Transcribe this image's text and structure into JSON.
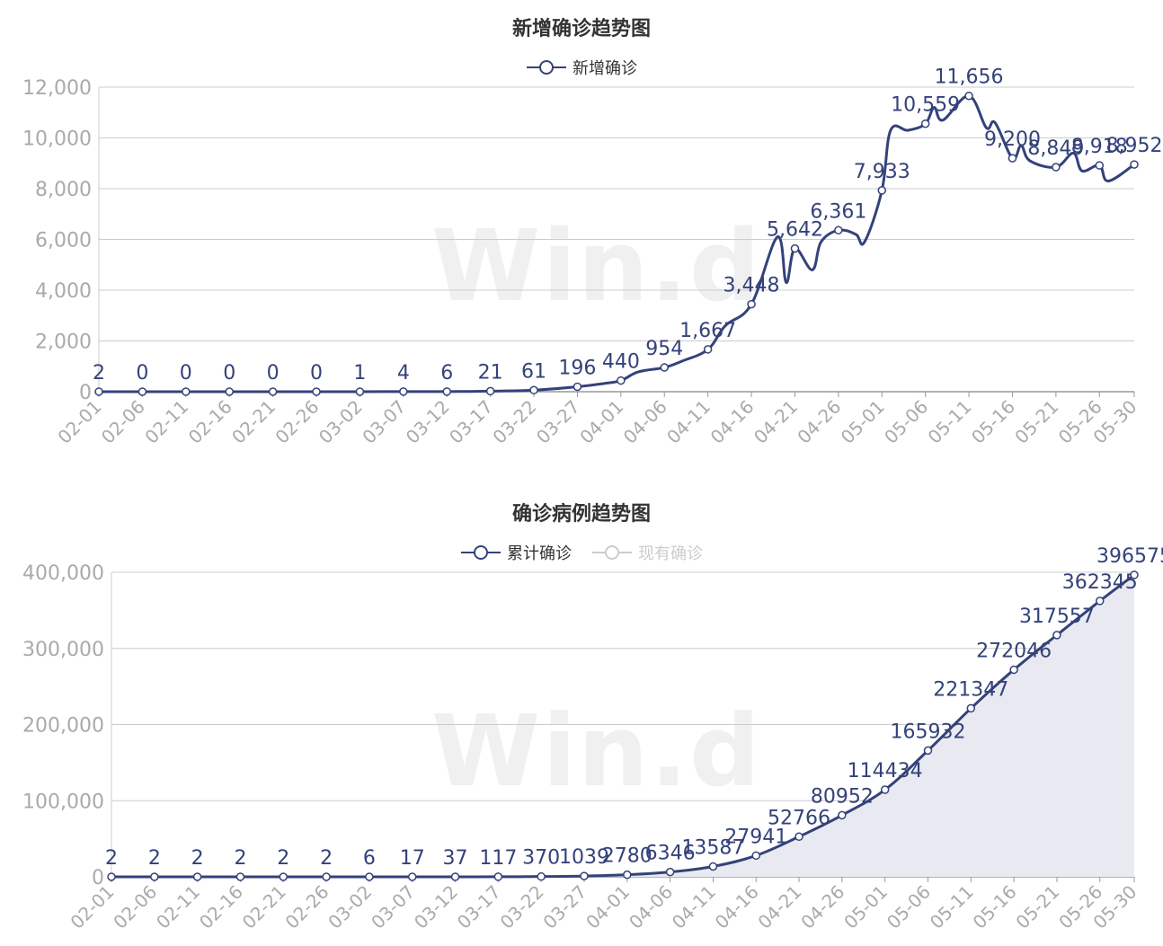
{
  "watermark": "Win.d",
  "chart_data": [
    {
      "type": "line",
      "title": "新增确诊趋势图",
      "legend": [
        "新增确诊"
      ],
      "colors": {
        "series": "#34427a",
        "grid": "#cccccc",
        "axis_text": "#aaaaaa"
      },
      "ylim": [
        0,
        12000
      ],
      "yticks": [
        "0",
        "2,000",
        "4,000",
        "6,000",
        "8,000",
        "10,000",
        "12,000"
      ],
      "x_ticks": [
        "02-01",
        "02-06",
        "02-11",
        "02-16",
        "02-21",
        "02-26",
        "03-02",
        "03-07",
        "03-12",
        "03-17",
        "03-22",
        "03-27",
        "04-01",
        "04-06",
        "04-11",
        "04-16",
        "04-21",
        "04-26",
        "05-01",
        "05-06",
        "05-11",
        "05-16",
        "05-21",
        "05-26",
        "05-30"
      ],
      "series": [
        {
          "name": "新增确诊",
          "x": [
            "02-01",
            "02-06",
            "02-11",
            "02-16",
            "02-21",
            "02-26",
            "03-02",
            "03-07",
            "03-12",
            "03-17",
            "03-22",
            "03-27",
            "03-30",
            "04-01",
            "04-03",
            "04-06",
            "04-08",
            "04-11",
            "04-13",
            "04-16",
            "04-19",
            "04-20",
            "04-21",
            "04-23",
            "04-24",
            "04-26",
            "04-28",
            "04-29",
            "05-01",
            "05-02",
            "05-04",
            "05-06",
            "05-07",
            "05-08",
            "05-11",
            "05-13",
            "05-14",
            "05-16",
            "05-17",
            "05-18",
            "05-21",
            "05-23",
            "05-24",
            "05-26",
            "05-27",
            "05-30"
          ],
          "values": [
            2,
            0,
            0,
            0,
            0,
            0,
            1,
            4,
            6,
            21,
            61,
            196,
            320,
            440,
            780,
            954,
            1200,
            1667,
            2600,
            3448,
            6100,
            4300,
            5642,
            4800,
            5900,
            6361,
            6200,
            5900,
            7933,
            10300,
            10300,
            10559,
            11200,
            10700,
            11656,
            10400,
            10600,
            9200,
            9700,
            9100,
            8849,
            9400,
            8700,
            8918,
            8300,
            8952
          ]
        }
      ],
      "point_labels": [
        {
          "x": "02-01",
          "label": "2"
        },
        {
          "x": "02-06",
          "label": "0"
        },
        {
          "x": "02-11",
          "label": "0"
        },
        {
          "x": "02-16",
          "label": "0"
        },
        {
          "x": "02-21",
          "label": "0"
        },
        {
          "x": "02-26",
          "label": "0"
        },
        {
          "x": "03-02",
          "label": "1"
        },
        {
          "x": "03-07",
          "label": "4"
        },
        {
          "x": "03-12",
          "label": "6"
        },
        {
          "x": "03-17",
          "label": "21"
        },
        {
          "x": "03-22",
          "label": "61"
        },
        {
          "x": "03-27",
          "label": "196"
        },
        {
          "x": "04-01",
          "label": "440"
        },
        {
          "x": "04-06",
          "label": "954"
        },
        {
          "x": "04-11",
          "label": "1,667"
        },
        {
          "x": "04-16",
          "label": "3,448"
        },
        {
          "x": "04-21",
          "label": "5,642"
        },
        {
          "x": "04-26",
          "label": "6,361"
        },
        {
          "x": "05-01",
          "label": "7,933"
        },
        {
          "x": "05-06",
          "label": "10,559"
        },
        {
          "x": "05-11",
          "label": "11,656"
        },
        {
          "x": "05-16",
          "label": "9,200"
        },
        {
          "x": "05-21",
          "label": "8,849"
        },
        {
          "x": "05-26",
          "label": "8,918"
        },
        {
          "x": "05-30",
          "label": "8,952"
        }
      ]
    },
    {
      "type": "area",
      "title": "确诊病例趋势图",
      "legend": [
        "累计确诊",
        "现有确诊"
      ],
      "colors": {
        "series": "#34427a",
        "area": "#e9eaf1",
        "inactive": "#cccccc",
        "grid": "#cccccc",
        "axis_text": "#aaaaaa"
      },
      "ylim": [
        0,
        400000
      ],
      "yticks": [
        "0",
        "100,000",
        "200,000",
        "300,000",
        "400,000"
      ],
      "x_ticks": [
        "02-01",
        "02-06",
        "02-11",
        "02-16",
        "02-21",
        "02-26",
        "03-02",
        "03-07",
        "03-12",
        "03-17",
        "03-22",
        "03-27",
        "04-01",
        "04-06",
        "04-11",
        "04-16",
        "04-21",
        "04-26",
        "05-01",
        "05-06",
        "05-11",
        "05-16",
        "05-21",
        "05-26",
        "05-30"
      ],
      "series": [
        {
          "name": "累计确诊",
          "x": [
            "02-01",
            "02-06",
            "02-11",
            "02-16",
            "02-21",
            "02-26",
            "03-02",
            "03-07",
            "03-12",
            "03-17",
            "03-22",
            "03-27",
            "04-01",
            "04-06",
            "04-11",
            "04-16",
            "04-21",
            "04-26",
            "05-01",
            "05-06",
            "05-11",
            "05-16",
            "05-21",
            "05-26",
            "05-30"
          ],
          "values": [
            2,
            2,
            2,
            2,
            2,
            2,
            6,
            17,
            37,
            117,
            370,
            1039,
            2780,
            6346,
            13587,
            27941,
            52766,
            80952,
            114434,
            165932,
            221347,
            272046,
            317557,
            362345,
            396575
          ]
        }
      ],
      "point_labels": [
        "2",
        "2",
        "2",
        "2",
        "2",
        "2",
        "6",
        "17",
        "37",
        "117",
        "370",
        "1039",
        "2780",
        "6346",
        "13587",
        "27941",
        "52766",
        "80952",
        "114434",
        "165932",
        "221347",
        "272046",
        "317557",
        "362345",
        "396575"
      ]
    }
  ]
}
